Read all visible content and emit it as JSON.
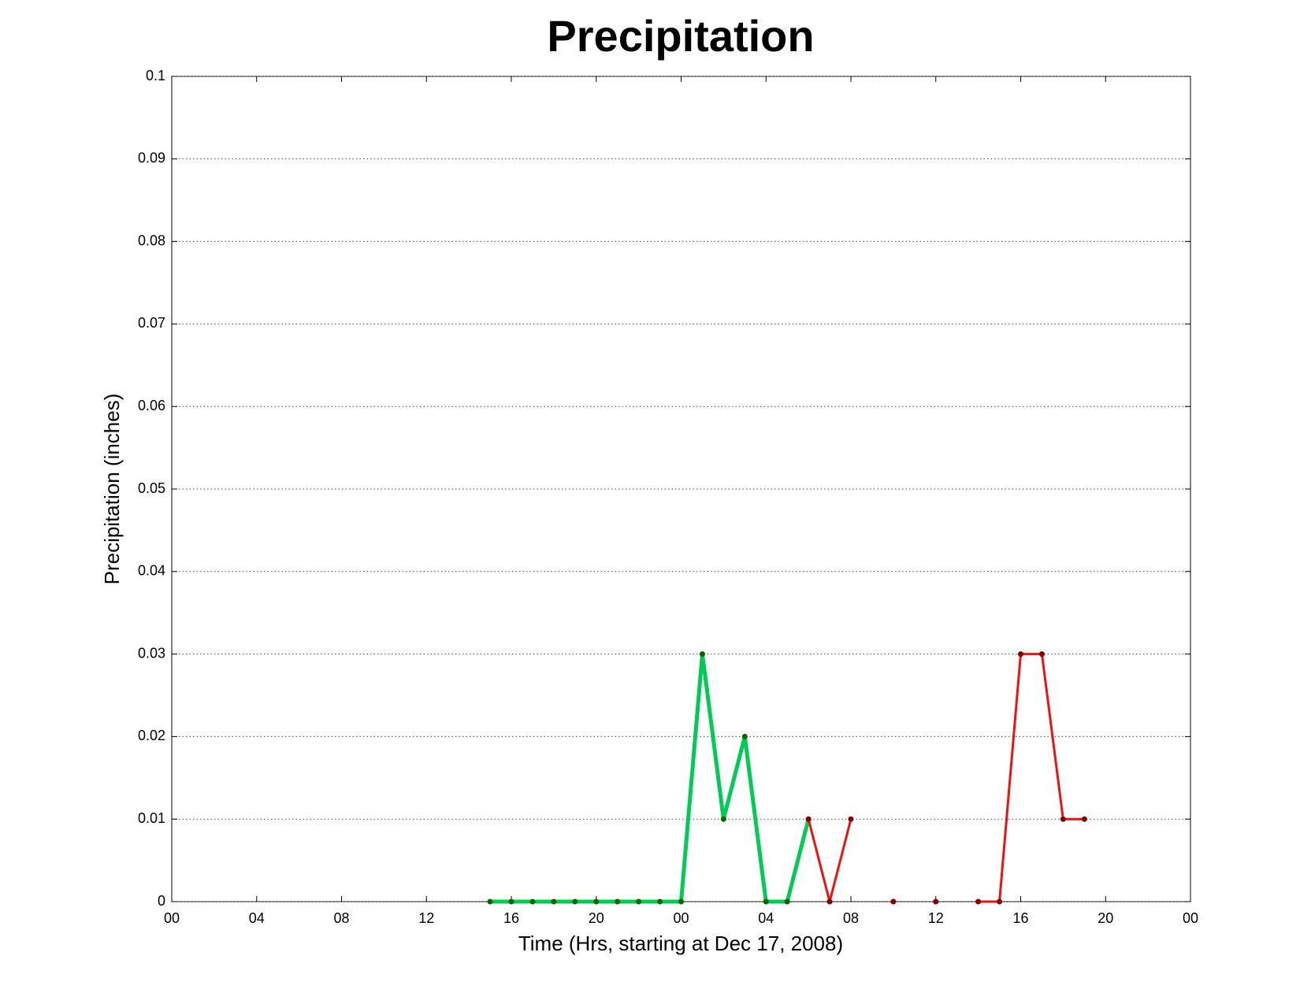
{
  "chart_data": {
    "type": "line",
    "title": "Precipitation",
    "x_label": "Time (Hrs, starting at Dec 17, 2008)",
    "y_label": "Precipitation (inches)",
    "xlim": [
      0,
      48
    ],
    "xticks": [
      {
        "value": 0,
        "label": "00"
      },
      {
        "value": 4,
        "label": "04"
      },
      {
        "value": 8,
        "label": "08"
      },
      {
        "value": 12,
        "label": "12"
      },
      {
        "value": 16,
        "label": "16"
      },
      {
        "value": 20,
        "label": "20"
      },
      {
        "value": 24,
        "label": "00"
      },
      {
        "value": 28,
        "label": "04"
      },
      {
        "value": 32,
        "label": "08"
      },
      {
        "value": 36,
        "label": "12"
      },
      {
        "value": 40,
        "label": "16"
      },
      {
        "value": 44,
        "label": "20"
      },
      {
        "value": 48,
        "label": "00"
      }
    ],
    "ylim": [
      0,
      0.1
    ],
    "yticks": [
      0,
      0.01,
      0.02,
      0.03,
      0.04,
      0.05,
      0.06,
      0.07,
      0.08,
      0.09,
      0.1
    ],
    "grid": true,
    "series": [
      {
        "color": "#00cc55",
        "marker_color": "#006600",
        "line_width": 5,
        "x": [
          15,
          16,
          17,
          18,
          19,
          20,
          21,
          22,
          23,
          24,
          25,
          26,
          27,
          28,
          29,
          30
        ],
        "values": [
          0,
          0,
          0,
          0,
          0,
          0,
          0,
          0,
          0,
          0,
          0.03,
          0.01,
          0.02,
          0,
          0,
          0.01
        ]
      },
      {
        "color": "#ee1111",
        "marker_color": "#800000",
        "line_width": 3,
        "x": [
          30,
          31,
          32,
          33,
          34,
          35,
          36,
          37,
          38,
          39,
          40,
          41,
          42,
          43
        ],
        "values": [
          0.01,
          0,
          0.01,
          null,
          0,
          null,
          0,
          null,
          0,
          0,
          0.03,
          0.03,
          0.01,
          0.01
        ]
      }
    ]
  }
}
